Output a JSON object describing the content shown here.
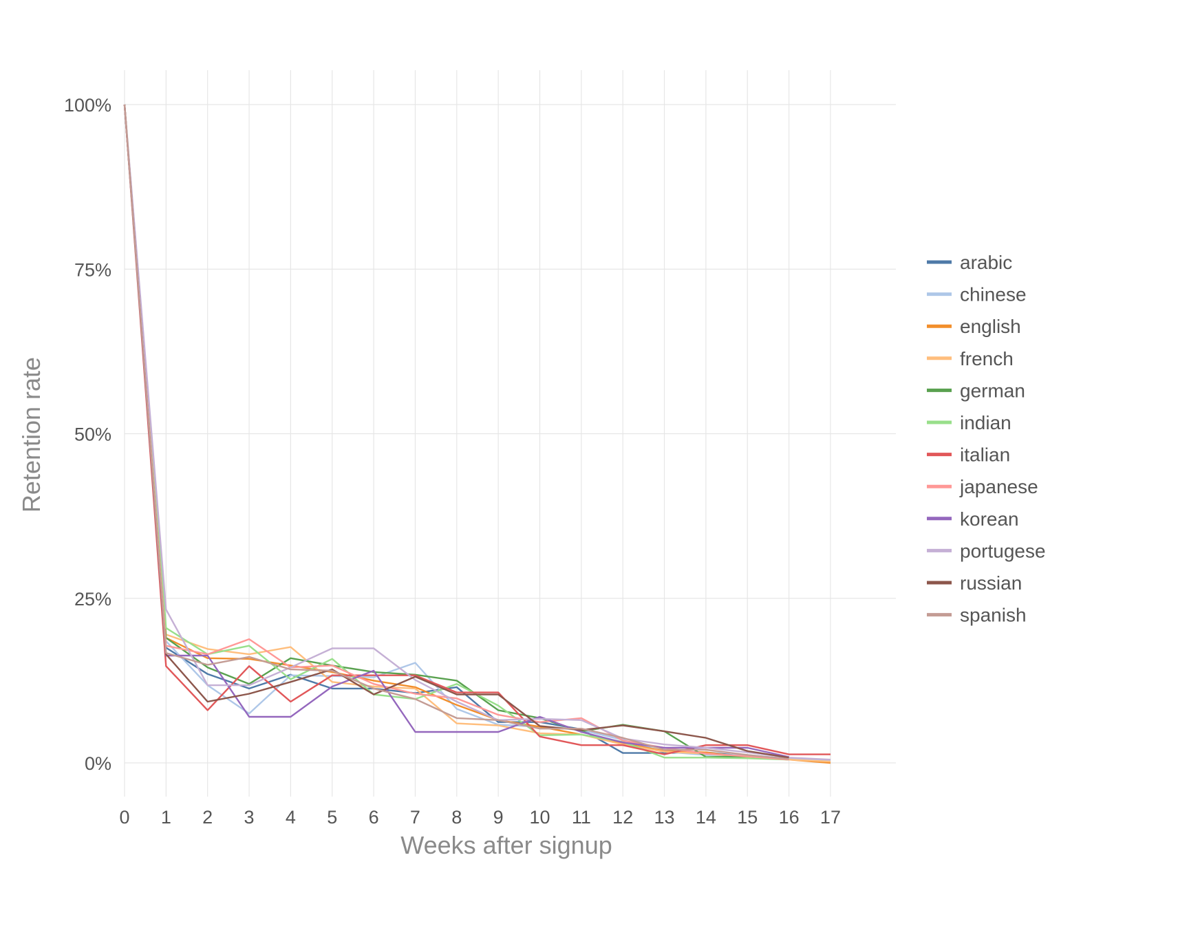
{
  "chart_data": {
    "type": "line",
    "xlabel": "Weeks after signup",
    "ylabel": "Retention rate",
    "x": [
      0,
      1,
      2,
      3,
      4,
      5,
      6,
      7,
      8,
      9,
      10,
      11,
      12,
      13,
      14,
      15,
      16,
      17
    ],
    "x_tick_labels": [
      "0",
      "1",
      "2",
      "3",
      "4",
      "5",
      "6",
      "7",
      "8",
      "9",
      "10",
      "11",
      "12",
      "13",
      "14",
      "15",
      "16",
      "17"
    ],
    "y_ticks": [
      0,
      25,
      50,
      75,
      100
    ],
    "y_tick_labels": [
      "0%",
      "25%",
      "50%",
      "75%",
      "100%"
    ],
    "xlim": [
      0,
      18.8
    ],
    "ylim": [
      -5,
      105
    ],
    "grid": true,
    "legend_position": "right",
    "series": [
      {
        "name": "arabic",
        "color": "#4e79a7",
        "values": [
          100,
          17.5,
          13.5,
          11.3,
          13.4,
          11.3,
          11.3,
          10.6,
          11.5,
          6.2,
          6.2,
          5.1,
          1.5,
          1.5,
          1.6,
          1.0,
          0.7,
          null
        ]
      },
      {
        "name": "chinese",
        "color": "#aec7e8",
        "values": [
          100,
          18.5,
          11.8,
          7.5,
          13.3,
          13.2,
          13.0,
          15.2,
          8.2,
          5.8,
          5.5,
          5.0,
          3.5,
          1.7,
          1.2,
          1.2,
          0.6,
          0.4
        ]
      },
      {
        "name": "english",
        "color": "#f28e2b",
        "values": [
          100,
          19.0,
          15.9,
          15.8,
          14.8,
          13.8,
          12.5,
          11.5,
          8.8,
          6.5,
          5.5,
          4.3,
          3.0,
          1.8,
          1.6,
          0.8,
          0.5,
          0.0
        ]
      },
      {
        "name": "french",
        "color": "#ffbe7d",
        "values": [
          100,
          19.5,
          17.3,
          16.5,
          17.6,
          12.3,
          11.6,
          11.3,
          6.0,
          5.7,
          4.5,
          4.3,
          2.8,
          1.7,
          1.4,
          0.9,
          0.5,
          0.2
        ]
      },
      {
        "name": "german",
        "color": "#59a14f",
        "values": [
          100,
          19.0,
          14.5,
          12.0,
          15.9,
          14.8,
          13.8,
          13.4,
          12.5,
          8.0,
          6.8,
          4.8,
          5.8,
          4.8,
          0.9,
          1.0,
          0.5,
          null
        ]
      },
      {
        "name": "indian",
        "color": "#98df8a",
        "values": [
          100,
          20.5,
          16.5,
          17.8,
          12.7,
          15.8,
          10.4,
          9.7,
          12.0,
          8.7,
          4.2,
          4.3,
          3.2,
          0.8,
          0.8,
          0.7,
          0.5,
          null
        ]
      },
      {
        "name": "italian",
        "color": "#e15759",
        "values": [
          100,
          14.7,
          8.0,
          14.7,
          9.3,
          13.3,
          13.3,
          13.3,
          10.7,
          10.7,
          4.0,
          2.7,
          2.7,
          1.3,
          2.7,
          2.7,
          1.3,
          1.3
        ]
      },
      {
        "name": "japanese",
        "color": "#ff9896",
        "values": [
          100,
          17.8,
          16.5,
          18.8,
          14.5,
          14.8,
          12.0,
          10.5,
          9.8,
          7.3,
          6.2,
          6.8,
          3.4,
          2.3,
          1.4,
          1.0,
          0.5,
          null
        ]
      },
      {
        "name": "korean",
        "color": "#9467bd",
        "values": [
          100,
          16.3,
          16.3,
          7.0,
          7.0,
          11.6,
          14.0,
          4.7,
          4.7,
          4.7,
          7.0,
          4.7,
          3.1,
          2.3,
          2.3,
          2.3,
          0.9,
          null
        ]
      },
      {
        "name": "portugese",
        "color": "#c5b0d5",
        "values": [
          100,
          23.3,
          11.8,
          11.8,
          14.5,
          17.4,
          17.4,
          12.6,
          9.3,
          6.5,
          6.7,
          6.5,
          3.7,
          2.8,
          2.3,
          1.6,
          0.8,
          0.5
        ]
      },
      {
        "name": "russian",
        "color": "#8c564b",
        "values": [
          100,
          16.5,
          9.3,
          10.5,
          12.3,
          14.2,
          10.4,
          13.1,
          10.4,
          10.4,
          5.6,
          5.0,
          5.7,
          4.8,
          3.8,
          1.8,
          0.8,
          null
        ]
      },
      {
        "name": "spanish",
        "color": "#c49c94",
        "values": [
          100,
          16.7,
          14.9,
          16.1,
          14.2,
          14.0,
          11.3,
          9.7,
          6.8,
          6.5,
          5.2,
          5.2,
          3.8,
          2.0,
          2.0,
          1.2,
          0.6,
          null
        ]
      }
    ]
  }
}
